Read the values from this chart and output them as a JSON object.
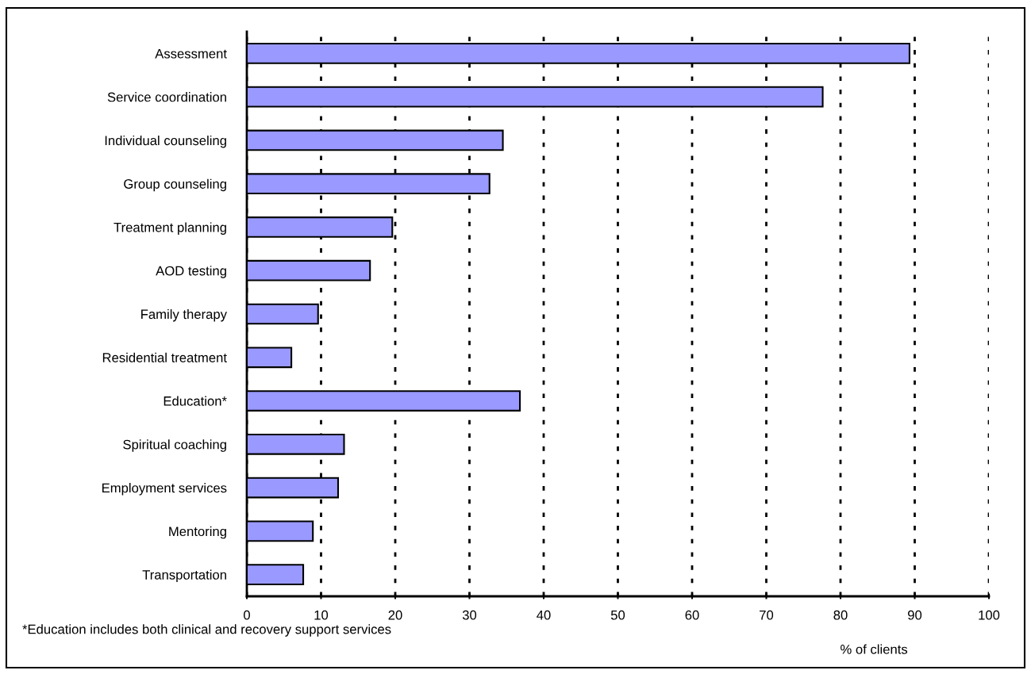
{
  "chart_data": {
    "type": "bar",
    "orientation": "horizontal",
    "categories": [
      "Assessment",
      "Service coordination",
      "Individual counseling",
      "Group counseling",
      "Treatment planning",
      "AOD testing",
      "Family therapy",
      "Residential treatment",
      "Education*",
      "Spiritual coaching",
      "Employment services",
      "Mentoring",
      "Transportation"
    ],
    "values": [
      89.3,
      77.6,
      34.5,
      32.7,
      19.6,
      16.6,
      9.6,
      6.0,
      36.8,
      13.1,
      12.3,
      8.9,
      7.6
    ],
    "color": "#9999ff",
    "xlim": [
      0,
      100
    ],
    "xticks": [
      0,
      10,
      20,
      30,
      40,
      50,
      60,
      70,
      80,
      90,
      100
    ],
    "xlabel": "% of clients",
    "grid": "x",
    "annotations": [
      "*Education includes both clinical and recovery support services"
    ]
  }
}
